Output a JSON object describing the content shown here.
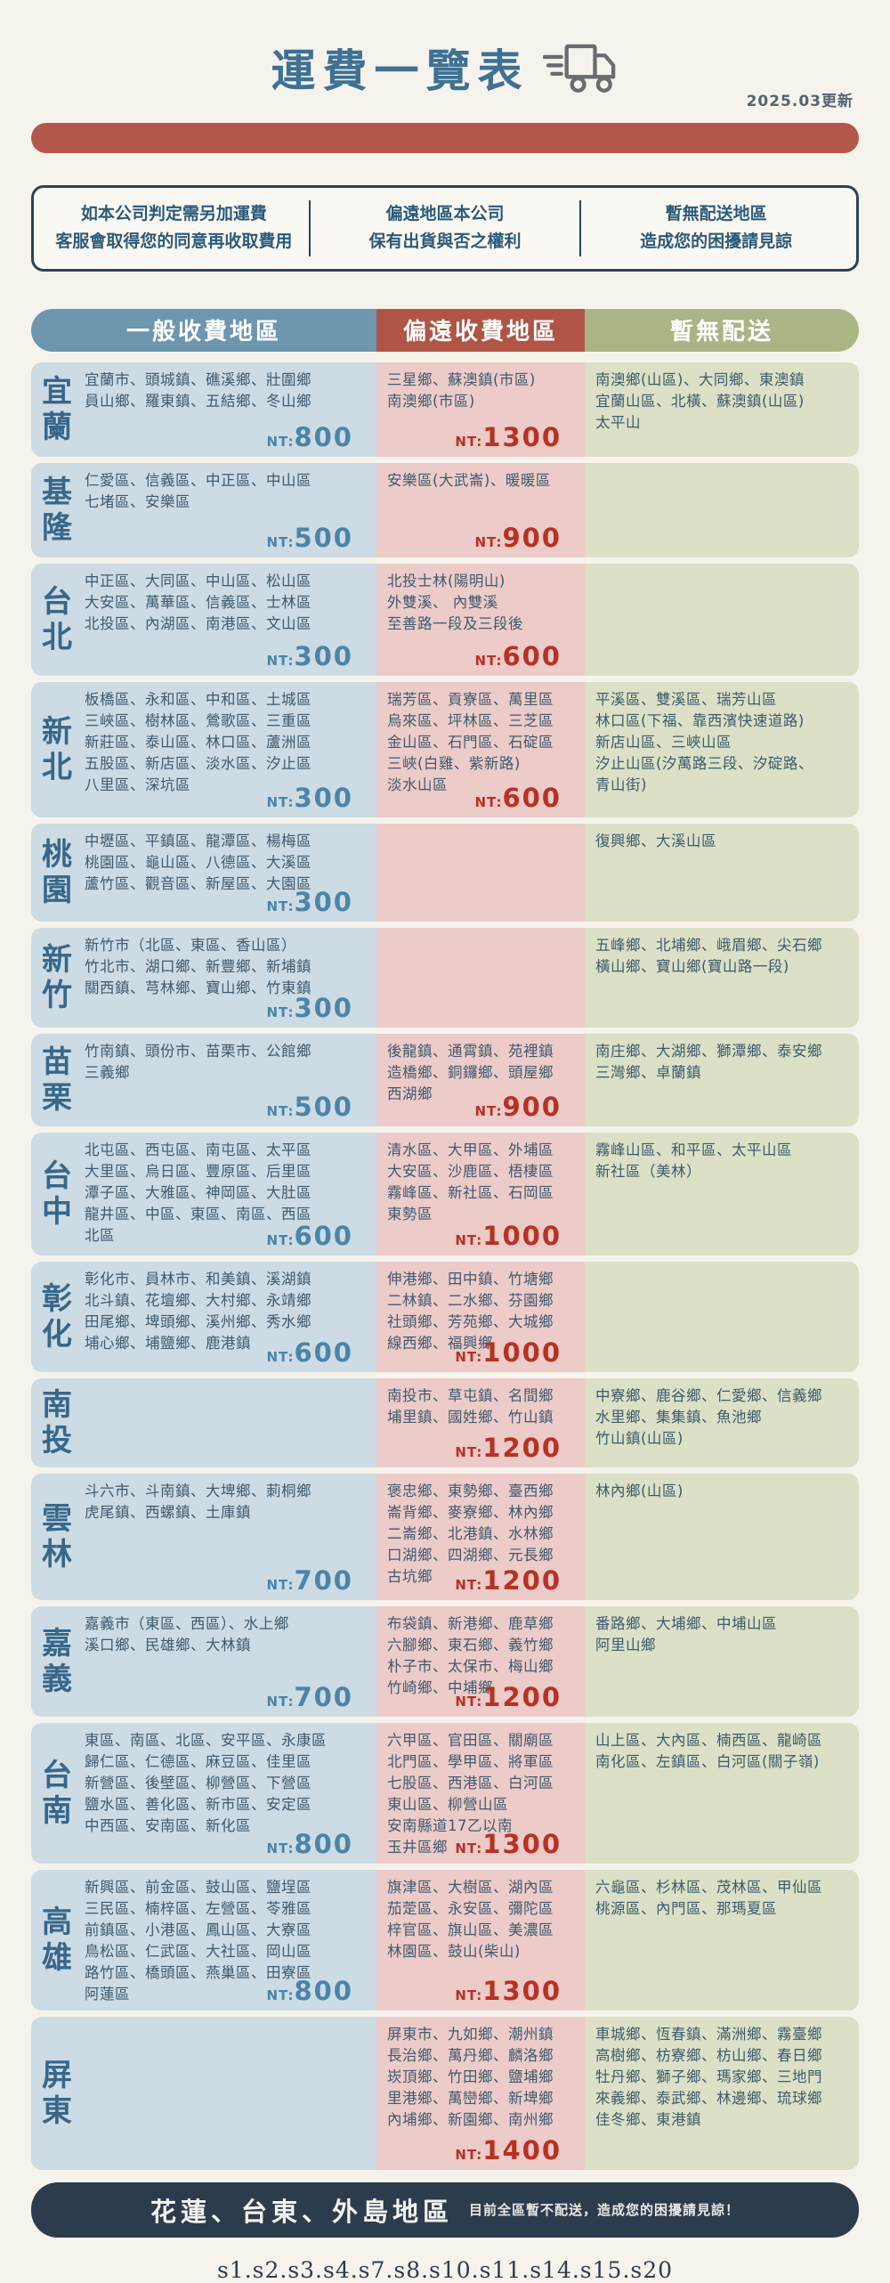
{
  "header": {
    "title": "運費一覽表",
    "updated": "2025.03更新"
  },
  "notices": [
    {
      "line1": "如本公司判定需另加運費",
      "line2": "客服會取得您的同意再收取費用"
    },
    {
      "line1": "偏遠地區本公司",
      "line2": "保有出貨與否之權利"
    },
    {
      "line1": "暫無配送地區",
      "line2": "造成您的困擾請見諒"
    }
  ],
  "columns": {
    "general": "一般收費地區",
    "remote": "偏遠收費地區",
    "none": "暫無配送"
  },
  "currency_prefix": "NT:",
  "colors": {
    "title_blue": "#3e7193",
    "bar_red": "#b2574a",
    "header_blue": "#6e96af",
    "header_red": "#b05546",
    "header_green": "#a9b584",
    "cell_blue": "#ccdbe4",
    "cell_pink": "#eccbc9",
    "cell_green": "#dbe0c6",
    "price_blue": "#4b84a8",
    "price_red": "#b93122",
    "footer_navy": "#2d3c4d"
  },
  "rows": [
    {
      "key": "yilan",
      "label": "宜蘭",
      "general": {
        "lines": [
          "宜蘭市、頭城鎮、礁溪鄉、壯圍鄉",
          "員山鄉、羅東鎮、五結鄉、冬山鄉"
        ],
        "price": "800"
      },
      "remote": {
        "lines": [
          "三星鄉、蘇澳鎮(市區)",
          "南澳鄉(市區)"
        ],
        "price": "1300"
      },
      "none": {
        "lines": [
          "南澳鄉(山區)、大同鄉、東澳鎮",
          "宜蘭山區、北橫、蘇澳鎮(山區)",
          "太平山"
        ],
        "price": ""
      }
    },
    {
      "key": "keelung",
      "label": "基隆",
      "general": {
        "lines": [
          "仁愛區、信義區、中正區、中山區",
          "七堵區、安樂區"
        ],
        "price": "500"
      },
      "remote": {
        "lines": [
          "安樂區(大武崙)、暖暖區"
        ],
        "price": "900"
      },
      "none": {
        "lines": [],
        "price": ""
      }
    },
    {
      "key": "taipei",
      "label": "台北",
      "general": {
        "lines": [
          "中正區、大同區、中山區、松山區",
          "大安區、萬華區、信義區、士林區",
          "北投區、內湖區、南港區、文山區"
        ],
        "price": "300"
      },
      "remote": {
        "lines": [
          "北投士林(陽明山)",
          "外雙溪、 內雙溪",
          "至善路一段及三段後"
        ],
        "price": "600"
      },
      "none": {
        "lines": [],
        "price": ""
      }
    },
    {
      "key": "newtaipei",
      "label": "新北",
      "general": {
        "lines": [
          "板橋區、永和區、中和區、土城區",
          "三峽區、樹林區、鶯歌區、三重區",
          "新莊區、泰山區、林口區、蘆洲區",
          "五股區、新店區、淡水區、汐止區",
          "八里區、深坑區"
        ],
        "price": "300"
      },
      "remote": {
        "lines": [
          "瑞芳區、貢寮區、萬里區",
          "烏來區、坪林區、三芝區",
          "金山區、石門區、石碇區",
          "三峽(白雞、紫新路)",
          "淡水山區"
        ],
        "price": "600"
      },
      "none": {
        "lines": [
          "平溪區、雙溪區、瑞芳山區",
          "林口區(下福、靠西濱快速道路)",
          "新店山區、三峽山區",
          "汐止山區(汐萬路三段、汐碇路、",
          "青山街)"
        ],
        "price": ""
      }
    },
    {
      "key": "taoyuan",
      "label": "桃園",
      "general": {
        "lines": [
          "中壢區、平鎮區、龍潭區、楊梅區",
          "桃園區、龜山區、八德區、大溪區",
          "蘆竹區、觀音區、新屋區、大園區"
        ],
        "price": "300"
      },
      "remote": {
        "lines": [],
        "price": ""
      },
      "none": {
        "lines": [
          "復興鄉、大溪山區"
        ],
        "price": ""
      }
    },
    {
      "key": "hsinchu",
      "label": "新竹",
      "general": {
        "lines": [
          "新竹市（北區、東區、香山區）",
          "竹北市、湖口鄉、新豐鄉、新埔鎮",
          "關西鎮、芎林鄉、寶山鄉、竹東鎮"
        ],
        "price": "300"
      },
      "remote": {
        "lines": [],
        "price": ""
      },
      "none": {
        "lines": [
          "五峰鄉、北埔鄉、峨眉鄉、尖石鄉",
          "橫山鄉、寶山鄉(寶山路一段)"
        ],
        "price": ""
      }
    },
    {
      "key": "miaoli",
      "label": "苗栗",
      "general": {
        "lines": [
          "竹南鎮、頭份市、苗栗市、公館鄉",
          "三義鄉"
        ],
        "price": "500"
      },
      "remote": {
        "lines": [
          "後龍鎮、通霄鎮、苑裡鎮",
          "造橋鄉、銅鑼鄉、頭屋鄉",
          "西湖鄉"
        ],
        "price": "900"
      },
      "none": {
        "lines": [
          "南庄鄉、大湖鄉、獅潭鄉、泰安鄉",
          "三灣鄉、卓蘭鎮"
        ],
        "price": ""
      }
    },
    {
      "key": "taichung",
      "label": "台中",
      "general": {
        "lines": [
          "北屯區、西屯區、南屯區、太平區",
          "大里區、烏日區、豐原區、后里區",
          "潭子區、大雅區、神岡區、大肚區",
          "龍井區、中區、東區、南區、西區",
          "北區"
        ],
        "price": "600"
      },
      "remote": {
        "lines": [
          "清水區、大甲區、外埔區",
          "大安區、沙鹿區、梧棲區",
          "霧峰區、新社區、石岡區",
          "東勢區"
        ],
        "price": "1000"
      },
      "none": {
        "lines": [
          "霧峰山區、和平區、太平山區",
          "新社區（美林）"
        ],
        "price": ""
      }
    },
    {
      "key": "changhua",
      "label": "彰化",
      "general": {
        "lines": [
          "彰化市、員林市、和美鎮、溪湖鎮",
          "北斗鎮、花壇鄉、大村鄉、永靖鄉",
          "田尾鄉、埤頭鄉、溪州鄉、秀水鄉",
          "埔心鄉、埔鹽鄉、鹿港鎮"
        ],
        "price": "600"
      },
      "remote": {
        "lines": [
          "伸港鄉、田中鎮、竹塘鄉",
          "二林鎮、二水鄉、芬園鄉",
          "社頭鄉、芳苑鄉、大城鄉",
          "線西鄉、福興鄉"
        ],
        "price": "1000"
      },
      "none": {
        "lines": [],
        "price": ""
      }
    },
    {
      "key": "nantou",
      "label": "南投",
      "general": {
        "lines": [],
        "price": ""
      },
      "remote": {
        "lines": [
          "南投市、草屯鎮、名間鄉",
          "埔里鎮、國姓鄉、竹山鎮"
        ],
        "price": "1200"
      },
      "none": {
        "lines": [
          "中寮鄉、鹿谷鄉、仁愛鄉、信義鄉",
          "水里鄉、集集鎮、魚池鄉",
          "竹山鎮(山區)"
        ],
        "price": ""
      }
    },
    {
      "key": "yunlin",
      "label": "雲林",
      "general": {
        "lines": [
          "斗六市、斗南鎮、大埤鄉、莿桐鄉",
          "虎尾鎮、西螺鎮、土庫鎮"
        ],
        "price": "700"
      },
      "remote": {
        "lines": [
          "褒忠鄉、東勢鄉、臺西鄉",
          "崙背鄉、麥寮鄉、林內鄉",
          "二崙鄉、北港鎮、水林鄉",
          "口湖鄉、四湖鄉、元長鄉",
          "古坑鄉"
        ],
        "price": "1200"
      },
      "none": {
        "lines": [
          "林內鄉(山區)"
        ],
        "price": ""
      }
    },
    {
      "key": "chiayi",
      "label": "嘉義",
      "general": {
        "lines": [
          "嘉義市（東區、西區）、水上鄉",
          "溪口鄉、民雄鄉、大林鎮"
        ],
        "price": "700"
      },
      "remote": {
        "lines": [
          "布袋鎮、新港鄉、鹿草鄉",
          "六腳鄉、東石鄉、義竹鄉",
          "朴子市、太保市、梅山鄉",
          "竹崎鄉、中埔鄉"
        ],
        "price": "1200"
      },
      "none": {
        "lines": [
          "番路鄉、大埔鄉、中埔山區",
          "阿里山鄉"
        ],
        "price": ""
      }
    },
    {
      "key": "tainan",
      "label": "台南",
      "general": {
        "lines": [
          "東區、南區、北區、安平區、永康區",
          "歸仁區、仁德區、麻豆區、佳里區",
          "新營區、後壁區、柳營區、下營區",
          "鹽水區、善化區、新市區、安定區",
          "中西區、安南區、新化區"
        ],
        "price": "800"
      },
      "remote": {
        "lines": [
          "六甲區、官田區、關廟區",
          "北門區、學甲區、將軍區",
          "七股區、西港區、白河區",
          "東山區、柳營山區",
          "安南縣道17乙以南",
          "玉井區鄉"
        ],
        "price": "1300"
      },
      "none": {
        "lines": [
          "山上區、大內區、楠西區、龍崎區",
          "南化區、左鎮區、白河區(關子嶺)"
        ],
        "price": ""
      }
    },
    {
      "key": "kaohsiung",
      "label": "高雄",
      "general": {
        "lines": [
          "新興區、前金區、鼓山區、鹽埕區",
          "三民區、楠梓區、左營區、苓雅區",
          "前鎮區、小港區、鳳山區、大寮區",
          "鳥松區、仁武區、大社區、岡山區",
          "路竹區、橋頭區、燕巢區、田寮區",
          "阿蓮區"
        ],
        "price": "800"
      },
      "remote": {
        "lines": [
          "旗津區、大樹區、湖內區",
          "茄萣區、永安區、彌陀區",
          "梓官區、旗山區、美濃區",
          "林園區、鼓山(柴山)"
        ],
        "price": "1300"
      },
      "none": {
        "lines": [
          "六龜區、杉林區、茂林區、甲仙區",
          "桃源區、內門區、那瑪夏區"
        ],
        "price": ""
      }
    },
    {
      "key": "pingtung",
      "label": "屏東",
      "general": {
        "lines": [],
        "price": ""
      },
      "remote": {
        "lines": [
          "屏東市、九如鄉、潮州鎮",
          "長治鄉、萬丹鄉、麟洛鄉",
          "崁頂鄉、竹田鄉、鹽埔鄉",
          "里港鄉、萬巒鄉、新埤鄉",
          "內埔鄉、新園鄉、南州鄉"
        ],
        "price": "1400"
      },
      "none": {
        "lines": [
          "車城鄉、恆春鎮、滿洲鄉、霧臺鄉",
          "高樹鄉、枋寮鄉、枋山鄉、春日鄉",
          "牡丹鄉、獅子鄉、瑪家鄉、三地門",
          "來義鄉、泰武鄉、林邊鄉、琉球鄉",
          "佳冬鄉、東港鎮"
        ],
        "price": ""
      }
    }
  ],
  "footer": {
    "title": "花蓮、台東、外島地區",
    "note": "目前全區暫不配送，造成您的困擾請見諒！"
  },
  "bottom_code": "s1.s2.s3.s4.s7.s8.s10.s11.s14.s15.s20"
}
